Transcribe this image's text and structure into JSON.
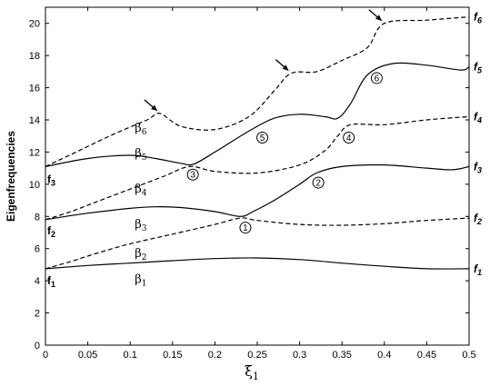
{
  "chart_data": {
    "type": "line",
    "xlabel": "ξ",
    "xlabel_sub": "1",
    "ylabel": "Eigenfrequencies",
    "xlim": [
      0,
      0.5
    ],
    "ylim": [
      0,
      21
    ],
    "x_ticks": [
      "0",
      "0.05",
      "0.1",
      "0.15",
      "0.2",
      "0.25",
      "0.3",
      "0.35",
      "0.4",
      "0.45",
      "0.5"
    ],
    "y_ticks": [
      "0",
      "2",
      "4",
      "6",
      "8",
      "10",
      "12",
      "14",
      "16",
      "18",
      "20"
    ],
    "grid": false,
    "series": [
      {
        "style": "solid",
        "points": [
          [
            0,
            4.75
          ],
          [
            0.05,
            4.95
          ],
          [
            0.1,
            5.1
          ],
          [
            0.15,
            5.25
          ],
          [
            0.2,
            5.38
          ],
          [
            0.25,
            5.42
          ],
          [
            0.3,
            5.32
          ],
          [
            0.35,
            5.1
          ],
          [
            0.4,
            4.9
          ],
          [
            0.45,
            4.75
          ],
          [
            0.5,
            4.75
          ]
        ]
      },
      {
        "style": "dashed",
        "points": [
          [
            0,
            4.75
          ],
          [
            0.03,
            5.2
          ],
          [
            0.06,
            5.7
          ],
          [
            0.1,
            6.3
          ],
          [
            0.15,
            6.9
          ],
          [
            0.2,
            7.5
          ],
          [
            0.23,
            7.9
          ],
          [
            0.25,
            7.75
          ],
          [
            0.3,
            7.5
          ],
          [
            0.35,
            7.45
          ],
          [
            0.4,
            7.55
          ],
          [
            0.45,
            7.75
          ],
          [
            0.5,
            7.9
          ]
        ]
      },
      {
        "style": "solid",
        "points": [
          [
            0,
            7.8
          ],
          [
            0.05,
            8.2
          ],
          [
            0.1,
            8.5
          ],
          [
            0.13,
            8.6
          ],
          [
            0.16,
            8.55
          ],
          [
            0.2,
            8.3
          ],
          [
            0.23,
            8.0
          ],
          [
            0.245,
            8.3
          ],
          [
            0.27,
            9.0
          ],
          [
            0.3,
            10.0
          ],
          [
            0.32,
            10.7
          ],
          [
            0.35,
            11.1
          ],
          [
            0.4,
            11.2
          ],
          [
            0.45,
            11.0
          ],
          [
            0.48,
            10.9
          ],
          [
            0.5,
            11.1
          ]
        ]
      },
      {
        "style": "dashed",
        "points": [
          [
            0,
            7.8
          ],
          [
            0.03,
            8.3
          ],
          [
            0.06,
            8.9
          ],
          [
            0.1,
            9.7
          ],
          [
            0.14,
            10.5
          ],
          [
            0.17,
            11.1
          ],
          [
            0.2,
            10.8
          ],
          [
            0.25,
            10.7
          ],
          [
            0.3,
            11.2
          ],
          [
            0.33,
            12.1
          ],
          [
            0.345,
            13.0
          ],
          [
            0.36,
            13.7
          ],
          [
            0.4,
            13.7
          ],
          [
            0.45,
            14.0
          ],
          [
            0.5,
            14.2
          ]
        ]
      },
      {
        "style": "solid",
        "points": [
          [
            0,
            11.1
          ],
          [
            0.05,
            11.6
          ],
          [
            0.1,
            11.8
          ],
          [
            0.13,
            11.6
          ],
          [
            0.16,
            11.3
          ],
          [
            0.175,
            11.25
          ],
          [
            0.2,
            12.0
          ],
          [
            0.24,
            13.3
          ],
          [
            0.27,
            14.1
          ],
          [
            0.3,
            14.35
          ],
          [
            0.33,
            14.2
          ],
          [
            0.345,
            14.1
          ],
          [
            0.36,
            15.0
          ],
          [
            0.38,
            16.8
          ],
          [
            0.41,
            17.5
          ],
          [
            0.45,
            17.4
          ],
          [
            0.49,
            17.1
          ],
          [
            0.5,
            17.3
          ]
        ]
      },
      {
        "style": "dashed",
        "points": [
          [
            0,
            11.1
          ],
          [
            0.04,
            12.1
          ],
          [
            0.08,
            13.1
          ],
          [
            0.12,
            14.0
          ],
          [
            0.135,
            14.4
          ],
          [
            0.16,
            13.6
          ],
          [
            0.2,
            13.4
          ],
          [
            0.24,
            14.2
          ],
          [
            0.27,
            15.8
          ],
          [
            0.29,
            16.9
          ],
          [
            0.32,
            17.0
          ],
          [
            0.35,
            17.7
          ],
          [
            0.38,
            18.5
          ],
          [
            0.4,
            20.0
          ],
          [
            0.45,
            20.2
          ],
          [
            0.5,
            20.4
          ]
        ]
      }
    ],
    "beta_labels": [
      {
        "text": "β",
        "sub": "1",
        "x": 0.1,
        "y": 4.1
      },
      {
        "text": "β",
        "sub": "2",
        "x": 0.1,
        "y": 5.7
      },
      {
        "text": "β",
        "sub": "3",
        "x": 0.1,
        "y": 7.5
      },
      {
        "text": "β",
        "sub": "4",
        "x": 0.1,
        "y": 9.7
      },
      {
        "text": "β",
        "sub": "5",
        "x": 0.1,
        "y": 11.9
      },
      {
        "text": "β",
        "sub": "6",
        "x": 0.1,
        "y": 13.5
      }
    ],
    "left_labels": [
      {
        "text": "f",
        "sub": "1",
        "y": 4.0
      },
      {
        "text": "f",
        "sub": "2",
        "y": 7.1
      },
      {
        "text": "f",
        "sub": "3",
        "y": 10.3
      }
    ],
    "right_labels": [
      {
        "text": "f",
        "sub": "1",
        "y": 4.75
      },
      {
        "text": "f",
        "sub": "2",
        "y": 7.9
      },
      {
        "text": "f",
        "sub": "3",
        "y": 11.1
      },
      {
        "text": "f",
        "sub": "4",
        "y": 14.2
      },
      {
        "text": "f",
        "sub": "5",
        "y": 17.3
      },
      {
        "text": "f",
        "sub": "6",
        "y": 20.4
      }
    ],
    "circle_markers": [
      {
        "text": "1",
        "x": 0.236,
        "y": 7.3
      },
      {
        "text": "2",
        "x": 0.322,
        "y": 10.1
      },
      {
        "text": "3",
        "x": 0.174,
        "y": 10.6
      },
      {
        "text": "4",
        "x": 0.358,
        "y": 12.9
      },
      {
        "text": "5",
        "x": 0.256,
        "y": 12.9
      },
      {
        "text": "6",
        "x": 0.391,
        "y": 16.6
      }
    ],
    "arrows": [
      {
        "x": 0.135,
        "y": 14.4
      },
      {
        "x": 0.29,
        "y": 16.9
      },
      {
        "x": 0.4,
        "y": 20.0
      }
    ]
  }
}
